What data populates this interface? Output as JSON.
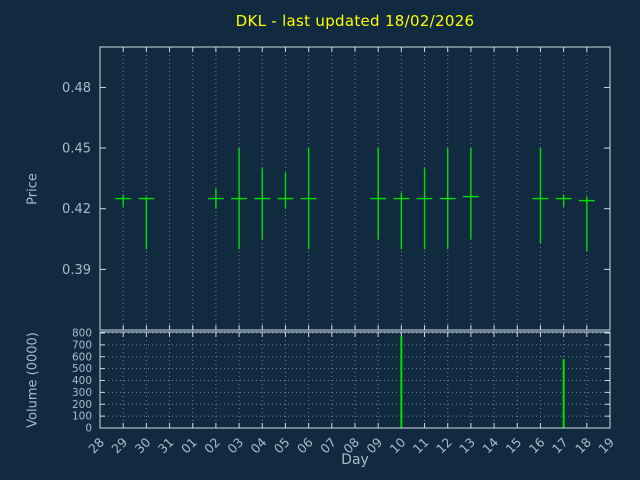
{
  "colors": {
    "background": "#112a3f",
    "border": "#d0dae2",
    "grid": "#6e8396",
    "axis_text": "#a6bccd",
    "title": "#ffff00",
    "series": "#00e000"
  },
  "chart_data": {
    "type": "hlc-bar+volume",
    "title": "DKL - last updated 18/02/2026",
    "xlabel": "Day",
    "legend": "none",
    "grid": "dotted",
    "x_categories": [
      "28",
      "29",
      "30",
      "31",
      "01",
      "02",
      "03",
      "04",
      "05",
      "06",
      "07",
      "08",
      "09",
      "10",
      "11",
      "12",
      "13",
      "14",
      "15",
      "16",
      "17",
      "18",
      "19"
    ],
    "price_panel": {
      "ylabel": "Price",
      "ylim": [
        0.36,
        0.5
      ],
      "y_ticks": [
        "0.39",
        "0.42",
        "0.45",
        "0.48"
      ],
      "bars": [
        {
          "day": "29",
          "high": 0.427,
          "low": 0.421,
          "close": 0.425
        },
        {
          "day": "30",
          "high": 0.426,
          "low": 0.4,
          "close": 0.425
        },
        {
          "day": "02",
          "high": 0.43,
          "low": 0.42,
          "close": 0.425
        },
        {
          "day": "03",
          "high": 0.45,
          "low": 0.4,
          "close": 0.425
        },
        {
          "day": "04",
          "high": 0.44,
          "low": 0.405,
          "close": 0.425
        },
        {
          "day": "05",
          "high": 0.438,
          "low": 0.42,
          "close": 0.425
        },
        {
          "day": "06",
          "high": 0.45,
          "low": 0.4,
          "close": 0.425
        },
        {
          "day": "09",
          "high": 0.45,
          "low": 0.405,
          "close": 0.425
        },
        {
          "day": "10",
          "high": 0.428,
          "low": 0.4,
          "close": 0.425
        },
        {
          "day": "11",
          "high": 0.44,
          "low": 0.4,
          "close": 0.425
        },
        {
          "day": "12",
          "high": 0.45,
          "low": 0.4,
          "close": 0.425
        },
        {
          "day": "13",
          "high": 0.45,
          "low": 0.405,
          "close": 0.426
        },
        {
          "day": "16",
          "high": 0.45,
          "low": 0.403,
          "close": 0.425
        },
        {
          "day": "17",
          "high": 0.427,
          "low": 0.421,
          "close": 0.425
        },
        {
          "day": "18",
          "high": 0.426,
          "low": 0.399,
          "close": 0.424
        }
      ]
    },
    "volume_panel": {
      "ylabel": "Volume (0000)",
      "ylim": [
        0,
        800
      ],
      "y_ticks": [
        "0",
        "100",
        "200",
        "300",
        "400",
        "500",
        "600",
        "700",
        "800"
      ],
      "bars": [
        {
          "day": "10",
          "value": 770
        },
        {
          "day": "17",
          "value": 580
        }
      ]
    }
  }
}
